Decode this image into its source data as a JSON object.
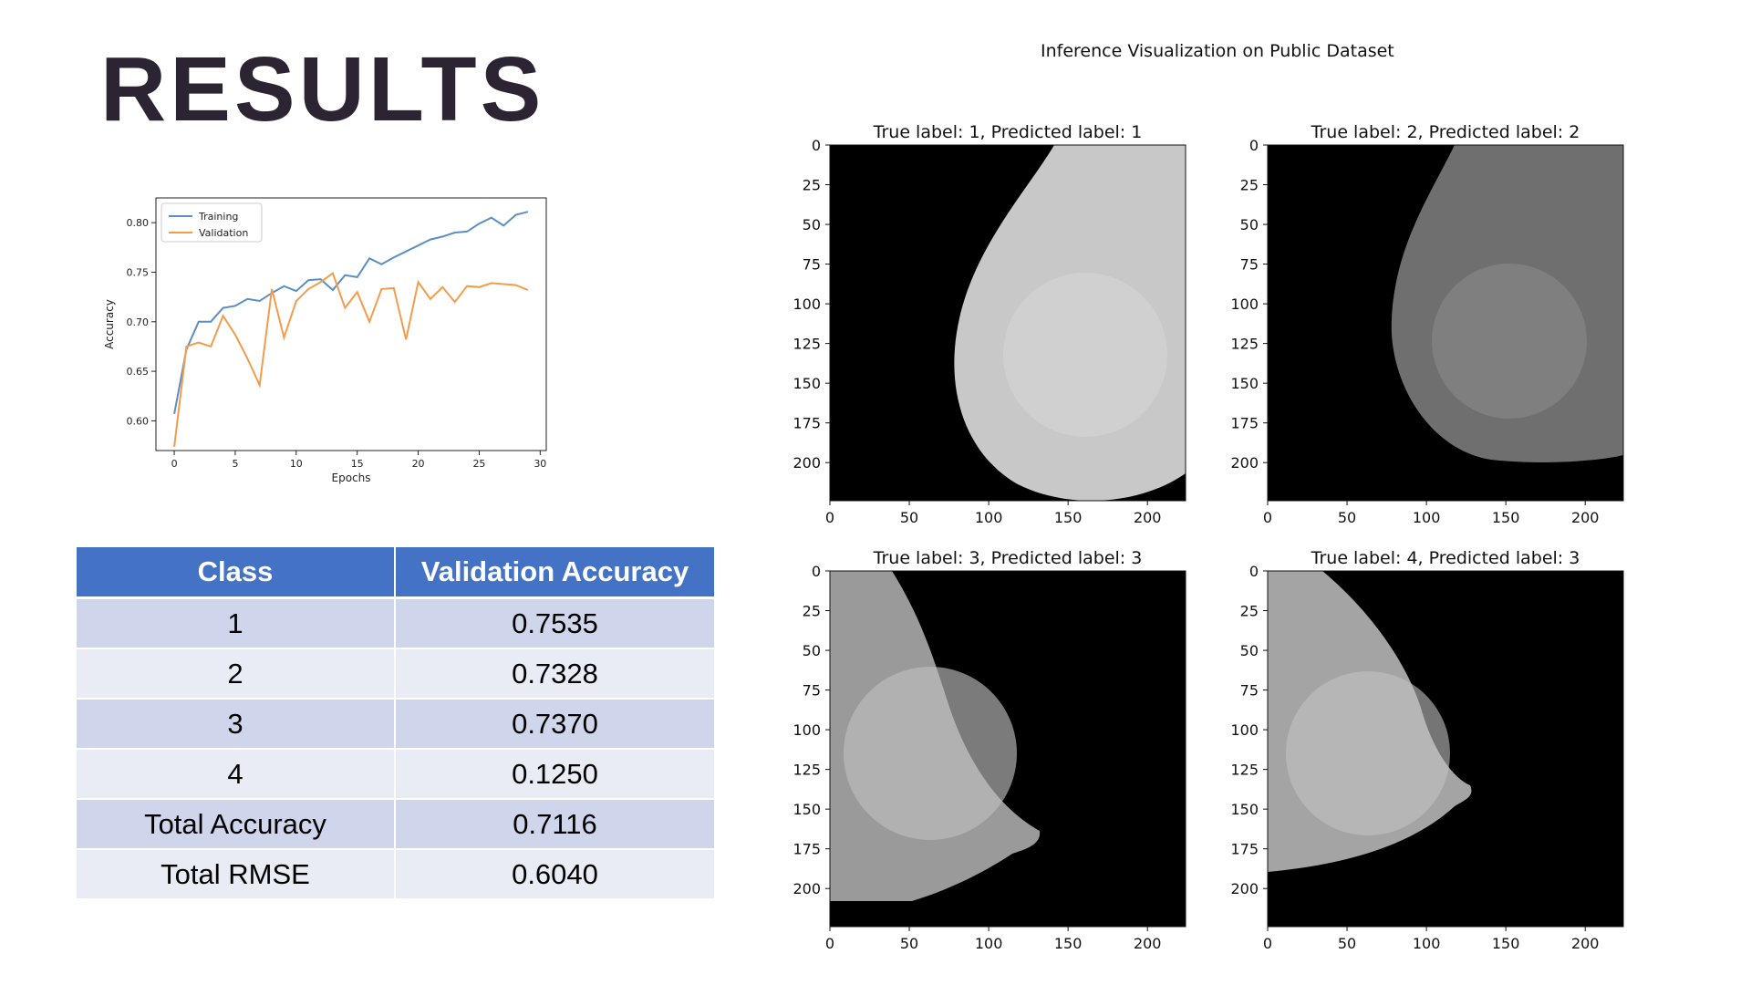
{
  "slide": {
    "title": "RESULTS"
  },
  "chart_data": [
    {
      "type": "line",
      "title": "",
      "xlabel": "Epochs",
      "ylabel": "Accuracy",
      "xlim": [
        -1.5,
        30.5
      ],
      "ylim": [
        0.57,
        0.825
      ],
      "xticks": [
        0,
        5,
        10,
        15,
        20,
        25,
        30
      ],
      "yticks": [
        0.6,
        0.65,
        0.7,
        0.75,
        0.8
      ],
      "grid": false,
      "legend": "top-left",
      "x": [
        0,
        1,
        2,
        3,
        4,
        5,
        6,
        7,
        8,
        9,
        10,
        11,
        12,
        13,
        14,
        15,
        16,
        17,
        18,
        19,
        20,
        21,
        22,
        23,
        24,
        25,
        26,
        27,
        28,
        29
      ],
      "series": [
        {
          "name": "Training",
          "color": "#5b8fc3",
          "values": [
            0.607,
            0.672,
            0.7,
            0.7,
            0.714,
            0.716,
            0.723,
            0.721,
            0.729,
            0.736,
            0.731,
            0.742,
            0.743,
            0.732,
            0.747,
            0.745,
            0.764,
            0.758,
            0.765,
            0.771,
            0.777,
            0.783,
            0.786,
            0.79,
            0.791,
            0.799,
            0.805,
            0.797,
            0.808,
            0.811
          ]
        },
        {
          "name": "Validation",
          "color": "#f39c4a",
          "values": [
            0.574,
            0.675,
            0.679,
            0.675,
            0.706,
            0.687,
            0.663,
            0.636,
            0.733,
            0.684,
            0.721,
            0.733,
            0.74,
            0.749,
            0.714,
            0.73,
            0.7,
            0.733,
            0.734,
            0.682,
            0.74,
            0.723,
            0.735,
            0.72,
            0.736,
            0.735,
            0.739,
            0.738,
            0.737,
            0.732
          ]
        }
      ]
    }
  ],
  "table": {
    "headers": [
      "Class",
      "Validation Accuracy"
    ],
    "rows": [
      [
        "1",
        "0.7535"
      ],
      [
        "2",
        "0.7328"
      ],
      [
        "3",
        "0.7370"
      ],
      [
        "4",
        "0.1250"
      ],
      [
        "Total Accuracy",
        "0.7116"
      ],
      [
        "Total RMSE",
        "0.6040"
      ]
    ]
  },
  "inference": {
    "title": "Inference Visualization on Public Dataset",
    "xticks": [
      0,
      50,
      100,
      150,
      200
    ],
    "yticks": [
      0,
      25,
      50,
      75,
      100,
      125,
      150,
      175,
      200
    ],
    "panels": [
      {
        "caption": "True label: 1, Predicted label: 1"
      },
      {
        "caption": "True label: 2, Predicted label: 2"
      },
      {
        "caption": "True label: 3, Predicted label: 3"
      },
      {
        "caption": "True label: 4, Predicted label: 3"
      }
    ]
  }
}
